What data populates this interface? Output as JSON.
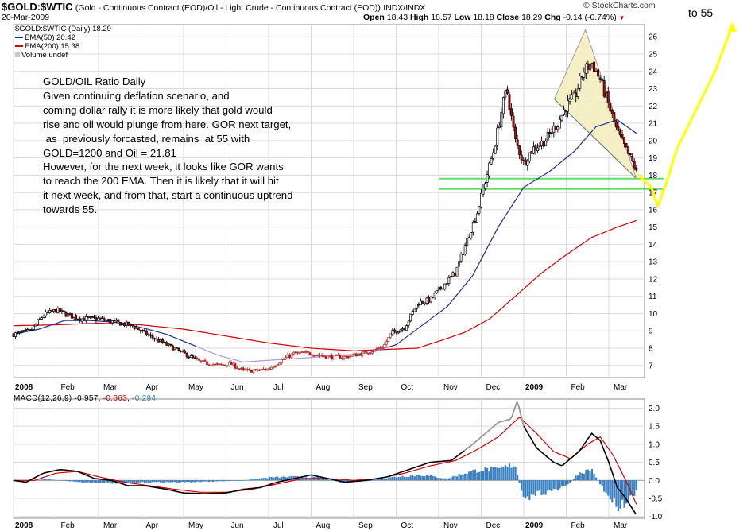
{
  "header": {
    "symbol": "$GOLD:$WTIC",
    "description": "(Gold - Continuous Contract (EOD)/Oil - Light Crude - Continuous Contract (EOD))",
    "exchange": "INDX/INDX",
    "date": "20-Mar-2009",
    "watermark": "© StockCharts.com",
    "open_label": "Open",
    "open": "18.43",
    "high_label": "High",
    "high": "18.57",
    "low_label": "Low",
    "low": "18.18",
    "close_label": "Close",
    "close": "18.29",
    "chg_label": "Chg",
    "chg": "-0.14 (-0.74%)"
  },
  "legend": {
    "main": "$GOLD:$WTIC (Daily) 18.29",
    "ema50": "EMA(50) 20.42",
    "ema200": "EMA(200) 15.38",
    "volume": "Volume undef"
  },
  "annotation": {
    "lines": [
      "GOLD/OIL Ratio Daily",
      "Given continuing deflation scenario, and",
      "coming dollar rally it is more likely that gold would",
      "rise and oil would  plunge from here. GOR next target,",
      " as  previously forcasted, remains  at 55 with",
      "GOLD=1200 and Oil = 21.81",
      "However, for the next week, it looks like GOR wants",
      "to reach the 200 EMA. Then it is likely that it will hit",
      "it next week, and from that, start a continuous uptrend",
      "towards 55."
    ],
    "target_label": "to 55"
  },
  "macd_legend": {
    "label": "MACD(12,26,9)",
    "macd": "-0.957",
    "signal": "-0.663",
    "hist": "-0.294"
  },
  "colors": {
    "price": "#000000",
    "ema50": "#1f2f8f",
    "ema200": "#d00000",
    "projection": "#ffff00",
    "support": "#66dd66",
    "wedge_fill": "#f5efc4",
    "macd_hist": "#3a7fbf",
    "grid": "#d9d9d9"
  },
  "chart_data": [
    {
      "type": "candlestick",
      "title": "$GOLD:$WTIC (Daily)",
      "x_ticks": [
        "2008",
        "Feb",
        "Mar",
        "Apr",
        "May",
        "Jun",
        "Jul",
        "Aug",
        "Sep",
        "Oct",
        "Nov",
        "Dec",
        "2009",
        "Feb",
        "Mar"
      ],
      "y_ticks": [
        7,
        8,
        9,
        10,
        11,
        12,
        13,
        14,
        15,
        16,
        17,
        18,
        19,
        20,
        21,
        22,
        23,
        24,
        25,
        26
      ],
      "ylim": [
        6.3,
        26.7
      ],
      "x_range_months": [
        0,
        14.65
      ],
      "price_anchors": [
        [
          0,
          8.8
        ],
        [
          0.4,
          9.0
        ],
        [
          0.7,
          9.9
        ],
        [
          1.0,
          10.2
        ],
        [
          1.3,
          9.9
        ],
        [
          1.6,
          9.7
        ],
        [
          2.0,
          9.7
        ],
        [
          2.4,
          9.5
        ],
        [
          2.8,
          9.3
        ],
        [
          3.2,
          8.7
        ],
        [
          3.6,
          8.2
        ],
        [
          4.0,
          7.7
        ],
        [
          4.4,
          7.2
        ],
        [
          4.8,
          7.0
        ],
        [
          5.1,
          7.1
        ],
        [
          5.4,
          6.7
        ],
        [
          5.7,
          6.7
        ],
        [
          6.0,
          6.8
        ],
        [
          6.3,
          7.3
        ],
        [
          6.6,
          7.7
        ],
        [
          7.0,
          7.7
        ],
        [
          7.4,
          7.5
        ],
        [
          7.8,
          7.5
        ],
        [
          8.2,
          7.7
        ],
        [
          8.5,
          7.9
        ],
        [
          8.7,
          8.1
        ],
        [
          8.9,
          8.9
        ],
        [
          9.2,
          9.2
        ],
        [
          9.5,
          10.6
        ],
        [
          9.8,
          10.8
        ],
        [
          10.1,
          11.6
        ],
        [
          10.4,
          12.4
        ],
        [
          10.7,
          14.5
        ],
        [
          10.9,
          15.8
        ],
        [
          11.1,
          17.7
        ],
        [
          11.3,
          19.5
        ],
        [
          11.5,
          22.0
        ],
        [
          11.6,
          23.0
        ],
        [
          11.8,
          20.0
        ],
        [
          12.0,
          18.7
        ],
        [
          12.2,
          19.5
        ],
        [
          12.5,
          20.0
        ],
        [
          12.8,
          21.0
        ],
        [
          13.0,
          22.0
        ],
        [
          13.2,
          22.5
        ],
        [
          13.4,
          24.0
        ],
        [
          13.6,
          24.5
        ],
        [
          13.8,
          23.5
        ],
        [
          14.0,
          22.0
        ],
        [
          14.2,
          20.5
        ],
        [
          14.4,
          19.5
        ],
        [
          14.65,
          18.29
        ]
      ],
      "ema50_anchors": [
        [
          0,
          8.8
        ],
        [
          0.6,
          9.1
        ],
        [
          1.2,
          9.6
        ],
        [
          1.8,
          9.6
        ],
        [
          2.4,
          9.5
        ],
        [
          3.0,
          9.2
        ],
        [
          3.6,
          8.8
        ],
        [
          4.2,
          8.2
        ],
        [
          4.8,
          7.6
        ],
        [
          5.4,
          7.2
        ],
        [
          6.0,
          7.3
        ],
        [
          6.6,
          7.4
        ],
        [
          7.2,
          7.5
        ],
        [
          7.8,
          7.6
        ],
        [
          8.4,
          7.75
        ],
        [
          9.0,
          8.2
        ],
        [
          9.6,
          9.3
        ],
        [
          10.2,
          10.4
        ],
        [
          10.8,
          12.2
        ],
        [
          11.4,
          15.0
        ],
        [
          12.0,
          17.3
        ],
        [
          12.6,
          18.2
        ],
        [
          13.2,
          19.4
        ],
        [
          13.7,
          20.8
        ],
        [
          14.2,
          21.2
        ],
        [
          14.65,
          20.42
        ]
      ],
      "ema200_anchors": [
        [
          0,
          9.3
        ],
        [
          1.0,
          9.35
        ],
        [
          2.0,
          9.45
        ],
        [
          3.0,
          9.35
        ],
        [
          4.0,
          9.1
        ],
        [
          5.0,
          8.7
        ],
        [
          6.0,
          8.3
        ],
        [
          7.0,
          8.0
        ],
        [
          8.0,
          7.85
        ],
        [
          9.0,
          7.95
        ],
        [
          9.5,
          8.0
        ],
        [
          10.0,
          8.4
        ],
        [
          10.6,
          8.9
        ],
        [
          11.2,
          9.7
        ],
        [
          11.8,
          11.0
        ],
        [
          12.4,
          12.3
        ],
        [
          13.0,
          13.4
        ],
        [
          13.6,
          14.4
        ],
        [
          14.2,
          15.0
        ],
        [
          14.65,
          15.38
        ]
      ],
      "support_lines": [
        17.8,
        17.2
      ],
      "projection_points": [
        [
          14.7,
          18.0
        ],
        [
          15.0,
          17.3
        ],
        [
          15.15,
          16.2
        ],
        [
          15.35,
          17.5
        ],
        [
          15.6,
          19.5
        ],
        [
          16.0,
          21.5
        ],
        [
          16.5,
          24.0
        ],
        [
          16.9,
          26.6
        ]
      ]
    },
    {
      "type": "macd",
      "title": "MACD(12,26,9)",
      "y_ticks": [
        -1.0,
        -0.5,
        0.0,
        0.5,
        1.0,
        1.5,
        2.0
      ],
      "ylim": [
        -1.05,
        2.25
      ],
      "macd_anchors": [
        [
          0,
          0.0
        ],
        [
          0.3,
          -0.05
        ],
        [
          0.7,
          0.2
        ],
        [
          1.1,
          0.3
        ],
        [
          1.5,
          0.25
        ],
        [
          1.9,
          0.05
        ],
        [
          2.3,
          0.0
        ],
        [
          2.7,
          -0.15
        ],
        [
          3.1,
          -0.15
        ],
        [
          3.6,
          -0.25
        ],
        [
          4.0,
          -0.35
        ],
        [
          4.5,
          -0.37
        ],
        [
          5.0,
          -0.35
        ],
        [
          5.4,
          -0.25
        ],
        [
          5.8,
          -0.2
        ],
        [
          6.2,
          -0.05
        ],
        [
          6.6,
          0.05
        ],
        [
          7.0,
          0.15
        ],
        [
          7.4,
          0.05
        ],
        [
          7.8,
          -0.05
        ],
        [
          8.3,
          0.0
        ],
        [
          8.8,
          0.1
        ],
        [
          9.3,
          0.3
        ],
        [
          9.8,
          0.5
        ],
        [
          10.3,
          0.55
        ],
        [
          10.8,
          1.0
        ],
        [
          11.1,
          1.3
        ],
        [
          11.4,
          1.6
        ],
        [
          11.7,
          1.7
        ],
        [
          11.85,
          2.2
        ],
        [
          12.0,
          1.5
        ],
        [
          12.3,
          0.9
        ],
        [
          12.7,
          0.5
        ],
        [
          12.9,
          0.4
        ],
        [
          13.3,
          0.8
        ],
        [
          13.6,
          1.3
        ],
        [
          13.8,
          1.1
        ],
        [
          14.0,
          0.5
        ],
        [
          14.2,
          -0.2
        ],
        [
          14.4,
          -0.5
        ],
        [
          14.65,
          -0.957
        ]
      ],
      "signal_anchors": [
        [
          0,
          0.0
        ],
        [
          0.5,
          0.0
        ],
        [
          1.0,
          0.2
        ],
        [
          1.5,
          0.25
        ],
        [
          2.0,
          0.1
        ],
        [
          2.6,
          -0.05
        ],
        [
          3.2,
          -0.15
        ],
        [
          3.8,
          -0.25
        ],
        [
          4.4,
          -0.33
        ],
        [
          5.0,
          -0.33
        ],
        [
          5.6,
          -0.25
        ],
        [
          6.2,
          -0.1
        ],
        [
          6.8,
          0.05
        ],
        [
          7.4,
          0.05
        ],
        [
          8.0,
          0.0
        ],
        [
          8.6,
          0.05
        ],
        [
          9.2,
          0.2
        ],
        [
          9.8,
          0.4
        ],
        [
          10.4,
          0.55
        ],
        [
          10.9,
          0.85
        ],
        [
          11.4,
          1.2
        ],
        [
          11.9,
          1.75
        ],
        [
          12.3,
          1.3
        ],
        [
          12.7,
          0.8
        ],
        [
          13.1,
          0.6
        ],
        [
          13.5,
          1.0
        ],
        [
          13.8,
          1.2
        ],
        [
          14.1,
          0.7
        ],
        [
          14.4,
          0.0
        ],
        [
          14.65,
          -0.663
        ]
      ],
      "hist_anchors": [
        [
          0,
          -0.02
        ],
        [
          0.8,
          0.03
        ],
        [
          1.6,
          -0.05
        ],
        [
          2.4,
          -0.08
        ],
        [
          3.2,
          -0.05
        ],
        [
          4.0,
          -0.05
        ],
        [
          4.8,
          -0.03
        ],
        [
          5.4,
          0.0
        ],
        [
          6.0,
          0.08
        ],
        [
          6.6,
          0.1
        ],
        [
          7.2,
          0.08
        ],
        [
          7.8,
          -0.08
        ],
        [
          8.4,
          0.0
        ],
        [
          9.0,
          0.1
        ],
        [
          9.6,
          0.15
        ],
        [
          10.2,
          0.05
        ],
        [
          10.6,
          0.2
        ],
        [
          11.0,
          0.3
        ],
        [
          11.4,
          0.3
        ],
        [
          11.8,
          0.45
        ],
        [
          12.0,
          -0.6
        ],
        [
          12.3,
          -0.35
        ],
        [
          12.7,
          -0.3
        ],
        [
          13.0,
          -0.15
        ],
        [
          13.3,
          0.2
        ],
        [
          13.6,
          0.3
        ],
        [
          13.9,
          -0.3
        ],
        [
          14.2,
          -0.7
        ],
        [
          14.4,
          -0.6
        ],
        [
          14.65,
          -0.294
        ]
      ]
    }
  ]
}
